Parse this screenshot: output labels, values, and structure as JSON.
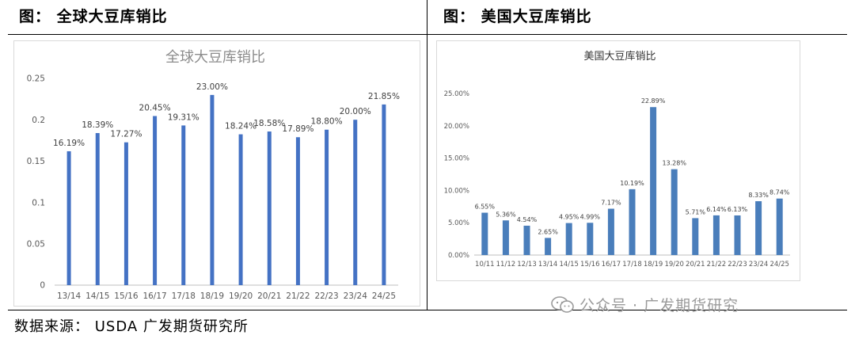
{
  "header": {
    "left_title": "图： 全球大豆库销比",
    "right_title": "图： 美国大豆库销比"
  },
  "footer": {
    "source": "数据来源： USDA 广发期货研究所",
    "watermark": "公众号 · 广发期货研究"
  },
  "chart_data": [
    {
      "type": "bar",
      "title": "全球大豆库销比",
      "categories": [
        "13/14",
        "14/15",
        "15/16",
        "16/17",
        "17/18",
        "18/19",
        "19/20",
        "20/21",
        "21/22",
        "22/23",
        "23/24",
        "24/25"
      ],
      "values": [
        0.1619,
        0.1839,
        0.1727,
        0.2045,
        0.1931,
        0.23,
        0.1824,
        0.1858,
        0.1789,
        0.188,
        0.2,
        0.2185
      ],
      "data_labels": [
        "16.19%",
        "18.39%",
        "17.27%",
        "20.45%",
        "19.31%",
        "23.00%",
        "18.24%",
        "18.58%",
        "17.89%",
        "18.80%",
        "20.00%",
        "21.85%"
      ],
      "ylim": [
        0,
        0.25
      ],
      "yticks": [
        "0",
        "0.05",
        "0.1",
        "0.15",
        "0.2",
        "0.25"
      ],
      "grid": false,
      "color": "#4472c4"
    },
    {
      "type": "bar",
      "title": "美国大豆库销比",
      "categories": [
        "10/11",
        "11/12",
        "12/13",
        "13/14",
        "14/15",
        "15/16",
        "16/17",
        "17/18",
        "18/19",
        "19/20",
        "20/21",
        "21/22",
        "22/23",
        "23/24",
        "24/25"
      ],
      "values": [
        6.55,
        5.36,
        4.54,
        2.65,
        4.95,
        4.99,
        7.17,
        10.19,
        22.89,
        13.28,
        5.71,
        6.14,
        6.13,
        8.33,
        8.74
      ],
      "data_labels": [
        "6.55%",
        "5.36%",
        "4.54%",
        "2.65%",
        "4.95%",
        "4.99%",
        "7.17%",
        "10.19%",
        "22.89%",
        "13.28%",
        "5.71%",
        "6.14%",
        "6.13%",
        "8.33%",
        "8.74%"
      ],
      "ylim": [
        0,
        25
      ],
      "yticks": [
        "0.00%",
        "5.00%",
        "10.00%",
        "15.00%",
        "20.00%",
        "25.00%"
      ],
      "grid": false,
      "color": "#4a7ebb"
    }
  ]
}
